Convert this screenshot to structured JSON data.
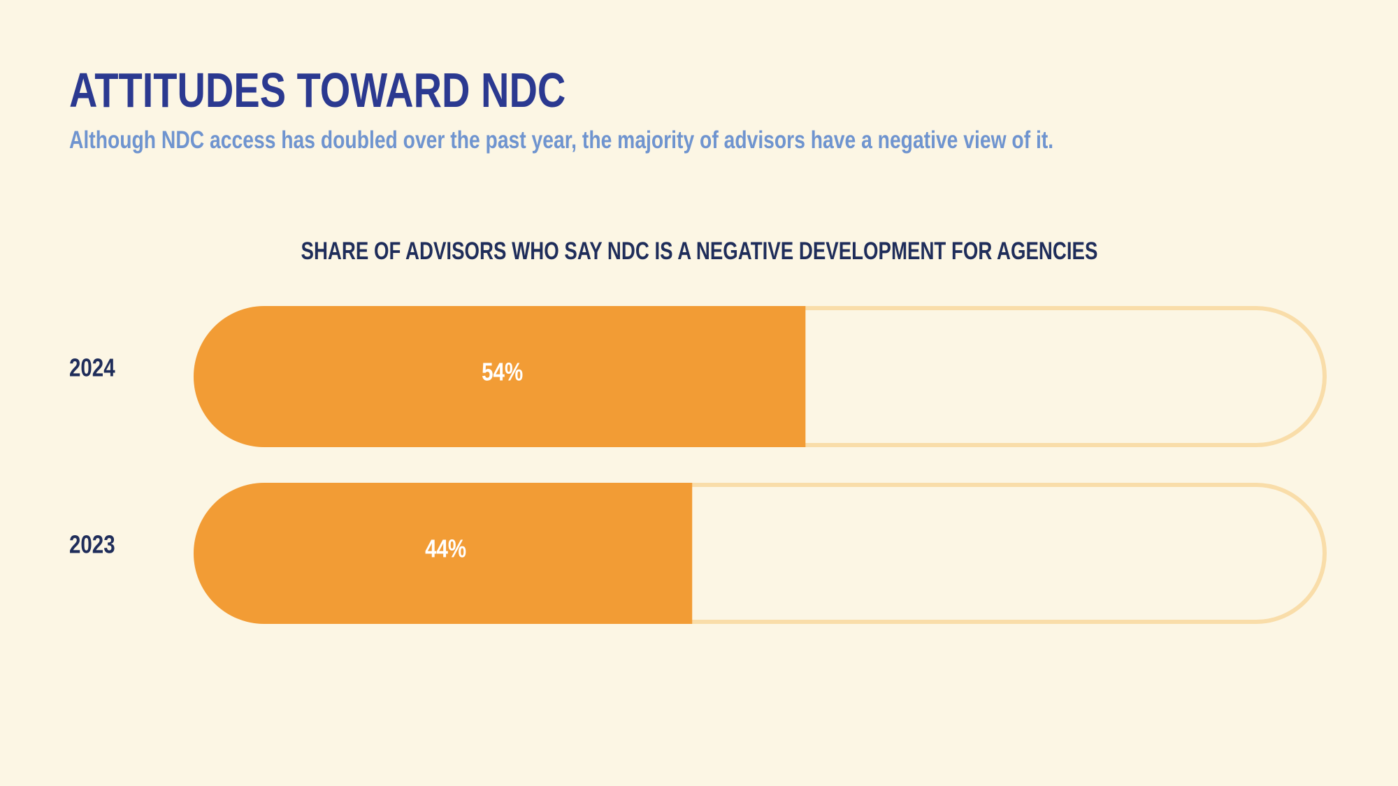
{
  "header": {
    "title": "ATTITUDES TOWARD NDC",
    "subtitle": "Although NDC access has doubled over the past year, the majority of advisors have a negative view of it."
  },
  "colors": {
    "background": "#fcf6e4",
    "title": "#2b3990",
    "subtitle": "#6f94cf",
    "bar_fill": "#f29c35",
    "bar_track": "#f9dda9",
    "labels": "#1f2d5a"
  },
  "chart_data": {
    "type": "bar",
    "orientation": "horizontal",
    "title": "SHARE OF ADVISORS WHO SAY NDC IS A NEGATIVE DEVELOPMENT FOR AGENCIES",
    "categories": [
      "2024",
      "2023"
    ],
    "values": [
      54,
      44
    ],
    "value_labels": [
      "54%",
      "44%"
    ],
    "unit": "%",
    "xlim": [
      0,
      100
    ],
    "grid": false,
    "legend": "none"
  }
}
